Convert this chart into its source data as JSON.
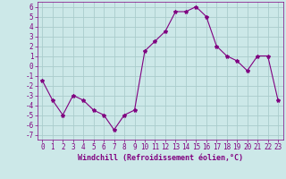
{
  "x": [
    0,
    1,
    2,
    3,
    4,
    5,
    6,
    7,
    8,
    9,
    10,
    11,
    12,
    13,
    14,
    15,
    16,
    17,
    18,
    19,
    20,
    21,
    22,
    23
  ],
  "y": [
    -1.5,
    -3.5,
    -5.0,
    -3.0,
    -3.5,
    -4.5,
    -5.0,
    -6.5,
    -5.0,
    -4.5,
    1.5,
    2.5,
    3.5,
    5.5,
    5.5,
    6.0,
    5.0,
    2.0,
    1.0,
    0.5,
    -0.5,
    1.0,
    1.0,
    -3.5
  ],
  "line_color": "#800080",
  "marker": "*",
  "marker_size": 3,
  "bg_color": "#cce8e8",
  "grid_color": "#aacccc",
  "xlabel": "Windchill (Refroidissement éolien,°C)",
  "xlabel_color": "#800080",
  "tick_color": "#800080",
  "ylim": [
    -7.5,
    6.5
  ],
  "xlim": [
    -0.5,
    23.5
  ],
  "yticks": [
    -7,
    -6,
    -5,
    -4,
    -3,
    -2,
    -1,
    0,
    1,
    2,
    3,
    4,
    5,
    6
  ],
  "xticks": [
    0,
    1,
    2,
    3,
    4,
    5,
    6,
    7,
    8,
    9,
    10,
    11,
    12,
    13,
    14,
    15,
    16,
    17,
    18,
    19,
    20,
    21,
    22,
    23
  ],
  "tick_fontsize": 5.5,
  "xlabel_fontsize": 6.0
}
